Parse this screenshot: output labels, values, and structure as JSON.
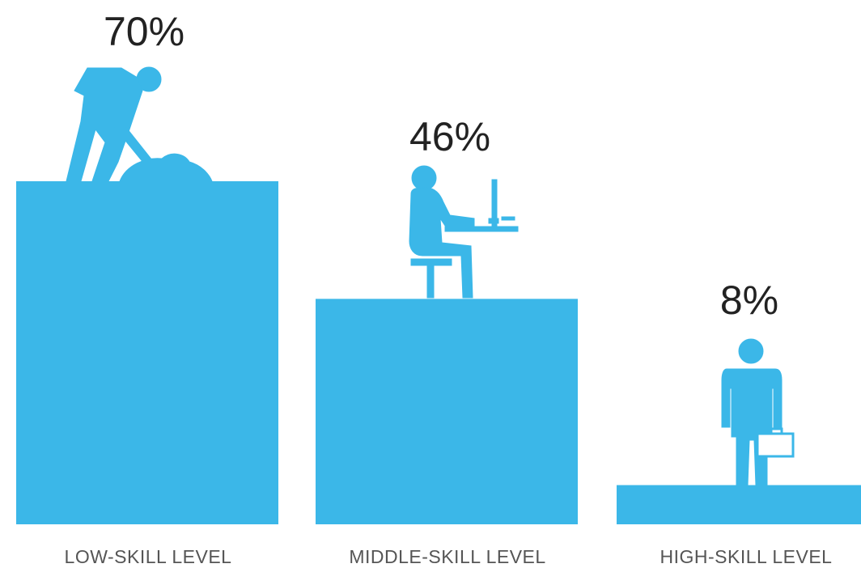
{
  "chart_data": {
    "type": "bar",
    "categories": [
      "LOW-SKILL LEVEL",
      "MIDDLE-SKILL LEVEL",
      "HIGH-SKILL LEVEL"
    ],
    "values": [
      70,
      46,
      8
    ],
    "value_labels": [
      "70%",
      "46%",
      "8%"
    ],
    "icons": [
      "digging-worker-icon",
      "desk-worker-icon",
      "businessman-icon"
    ],
    "ylim": [
      0,
      70
    ],
    "grid": false,
    "bar_color": "#3bb7e8"
  }
}
